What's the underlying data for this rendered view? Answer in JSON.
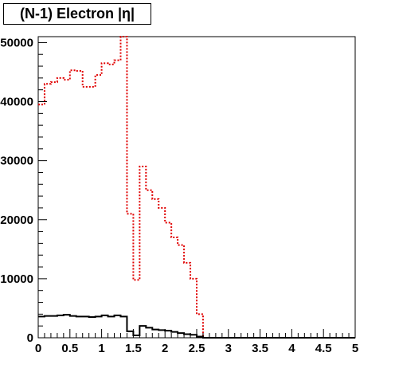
{
  "chart_data": {
    "type": "step",
    "title": "(N-1) Electron |η|",
    "xlim": [
      0,
      5
    ],
    "ylim": [
      0,
      51000
    ],
    "xticks": [
      0,
      0.5,
      1,
      1.5,
      2,
      2.5,
      3,
      3.5,
      4,
      4.5,
      5
    ],
    "xtick_labels": [
      "0",
      "0.5",
      "1",
      "1.5",
      "2",
      "2.5",
      "3",
      "3.5",
      "4",
      "4.5",
      "5"
    ],
    "yticks": [
      0,
      10000,
      20000,
      30000,
      40000,
      50000
    ],
    "ytick_labels": [
      "0",
      "10000",
      "20000",
      "30000",
      "40000",
      "50000"
    ],
    "bin_width": 0.1,
    "series": [
      {
        "color": "#e00000",
        "style": "dotted",
        "values": [
          39500,
          43000,
          43300,
          44000,
          43700,
          45300,
          45200,
          42500,
          42500,
          44500,
          46500,
          46300,
          47000,
          51000,
          21000,
          9800,
          29000,
          25000,
          23500,
          22000,
          19500,
          17000,
          15700,
          12700,
          10000,
          4000,
          0,
          0,
          0,
          0,
          0,
          0,
          0,
          0,
          0,
          0,
          0,
          0,
          0,
          0,
          0,
          0,
          0,
          0,
          0,
          0,
          0,
          0,
          0,
          0
        ]
      },
      {
        "color": "#000000",
        "style": "solid",
        "values": [
          3600,
          3700,
          3700,
          3800,
          3900,
          3700,
          3600,
          3600,
          3500,
          3600,
          3800,
          3600,
          3800,
          3600,
          1100,
          400,
          2000,
          1700,
          1400,
          1300,
          1200,
          1000,
          800,
          600,
          500,
          200,
          0,
          0,
          0,
          0,
          0,
          0,
          0,
          0,
          0,
          0,
          0,
          0,
          0,
          0,
          0,
          0,
          0,
          0,
          0,
          0,
          0,
          0,
          0,
          0
        ]
      }
    ]
  }
}
